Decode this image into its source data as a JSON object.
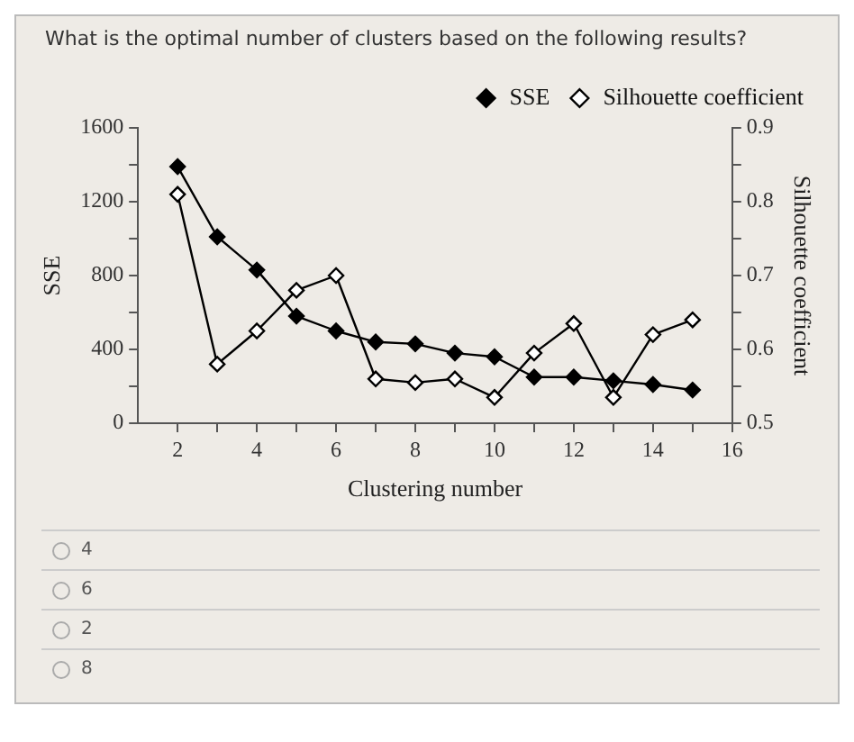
{
  "chart_data": {
    "type": "line",
    "title": "What is the optimal number of clusters based on the following results?",
    "xlabel": "Clustering number",
    "ylabel": "SSE",
    "y2label": "Silhouette coefficient",
    "x": [
      2,
      3,
      4,
      5,
      6,
      7,
      8,
      9,
      10,
      11,
      12,
      13,
      14,
      15
    ],
    "series": [
      {
        "name": "SSE",
        "color": "#000000",
        "values": [
          1390,
          1010,
          830,
          580,
          500,
          440,
          430,
          380,
          360,
          250,
          250,
          230,
          210,
          180
        ]
      },
      {
        "name": "Silhouette coefficient",
        "color": "#000000",
        "axis": "y2",
        "values": [
          0.81,
          0.58,
          0.625,
          0.68,
          0.7,
          0.56,
          0.555,
          0.56,
          0.535,
          0.595,
          0.635,
          0.535,
          0.62,
          0.64
        ]
      }
    ],
    "xlim": [
      1,
      16
    ],
    "xticks": [
      2,
      {
        "value": 3,
        "label": null
      },
      4,
      {
        "value": 5,
        "label": null
      },
      6,
      {
        "value": 7,
        "label": null
      },
      8,
      {
        "value": 9,
        "label": null
      },
      10,
      {
        "value": 11,
        "label": null
      },
      12,
      {
        "value": 13,
        "label": null
      },
      14,
      {
        "value": 15,
        "label": null
      },
      16
    ],
    "ylim": [
      0,
      1600
    ],
    "yticks": [
      0,
      {
        "value": 200,
        "label": null
      },
      400,
      {
        "value": 600,
        "label": null
      },
      800,
      {
        "value": 1000,
        "label": null
      },
      1200,
      {
        "value": 1400,
        "label": null
      },
      1600
    ],
    "y2lim": [
      0.5,
      0.9
    ],
    "y2ticks": [
      0.5,
      {
        "value": 0.55,
        "label": null
      },
      0.6,
      {
        "value": 0.65,
        "label": null
      },
      0.7,
      {
        "value": 0.75,
        "label": null
      },
      0.8,
      {
        "value": 0.85,
        "label": null
      },
      0.9
    ],
    "legend": "top right",
    "marker": "diamond",
    "line_style": "solid",
    "annotations": [
      "4",
      "6",
      "2",
      "8"
    ]
  }
}
